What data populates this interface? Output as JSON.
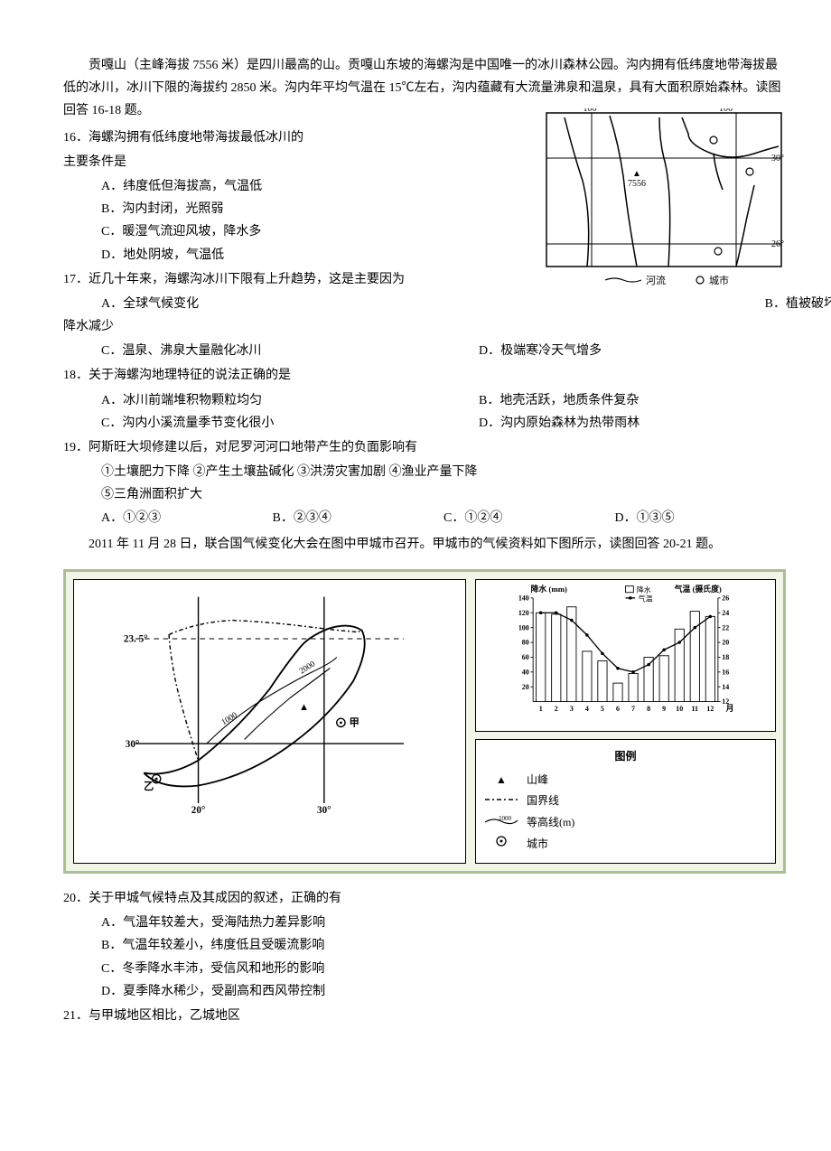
{
  "intro": "贡嘎山（主峰海拔 7556 米）是四川最高的山。贡嘎山东坡的海螺沟是中国唯一的冰川森林公园。沟内拥有低纬度地带海拔最低的冰川，冰川下限的海拔约 2850 米。沟内年平均气温在 15℃左右，沟内蕴藏有大流量沸泉和温泉，具有大面积原始森林。读图回答 16-18 题。",
  "q16": {
    "stem1": "16．海螺沟拥有低纬度地带海拔最低冰川的",
    "stem2": "主要条件是",
    "optA": "A．纬度低但海拔高，气温低",
    "optB": "B．沟内封闭，光照弱",
    "optC": "C．暖湿气流迎风坡，降水多",
    "optD": "D．地处阴坡，气温低"
  },
  "q17": {
    "stem": "17．近几十年来，海螺沟冰川下限有上升趋势，这是主要因为",
    "optA": "A．全球气候变化",
    "optB": "B．植被破坏，",
    "optB2": "降水减少",
    "optC": "C．温泉、沸泉大量融化冰川",
    "optD": "D．极端寒冷天气增多"
  },
  "q18": {
    "stem": "18．关于海螺沟地理特征的说法正确的是",
    "optA": "A．冰川前端堆积物颗粒均匀",
    "optB": "B．地壳活跃，地质条件复杂",
    "optC": "C．沟内小溪流量季节变化很小",
    "optD": "D．沟内原始森林为热带雨林"
  },
  "q19": {
    "stem": "19．阿斯旺大坝修建以后，对尼罗河河口地带产生的负面影响有",
    "items": "①土壤肥力下降    ②产生土壤盐碱化    ③洪涝灾害加剧    ④渔业产量下降",
    "items2": "⑤三角洲面积扩大",
    "optA": "A．①②③",
    "optB": "B．②③④",
    "optC": "C．①②④",
    "optD": "D．①③⑤"
  },
  "intro2": "2011 年 11 月 28 日，联合国气候变化大会在图中甲城市召开。甲城市的气候资料如下图所示，读图回答 20-21 题。",
  "q20": {
    "stem": "20．关于甲城气候特点及其成因的叙述，正确的有",
    "optA": "A．气温年较差大，受海陆热力差异影响",
    "optB": "B．气温年较差小，纬度低且受暖流影响",
    "optC": "C．冬季降水丰沛，受信风和地形的影响",
    "optD": "D．夏季降水稀少，受副高和西风带控制"
  },
  "q21": {
    "stem": "21．与甲城地区相比，乙城地区"
  },
  "map1": {
    "labels": {
      "lon100": "100°",
      "lon106": "106°",
      "lat30": "30°",
      "lat26": "26°",
      "peak": "7556",
      "river_legend": "河流",
      "city_legend": "城市"
    }
  },
  "bigmap": {
    "labels": {
      "lat235": "23. 5°",
      "lat30": "30°",
      "lon20": "20°",
      "lon30": "30°",
      "contour1000": "1000",
      "contour2000": "2000",
      "jia": "甲",
      "yi": "乙"
    },
    "legend": {
      "title": "图例",
      "peak": "山峰",
      "border": "国界线",
      "contour": "等高线(m)",
      "contour_val": "1000",
      "city": "城市"
    }
  },
  "chart": {
    "precip_label": "降水 (mm)",
    "temp_label": "气温 (摄氏度)",
    "legend_precip": "降水",
    "legend_temp": "气温",
    "y_precip": [
      20,
      40,
      60,
      80,
      100,
      120,
      140
    ],
    "y_temp": [
      12,
      14,
      16,
      18,
      20,
      22,
      24,
      26
    ],
    "months": [
      "1",
      "2",
      "3",
      "4",
      "5",
      "6",
      "7",
      "8",
      "9",
      "10",
      "11",
      "12"
    ],
    "month_suffix": "月",
    "precip_values": [
      120,
      118,
      128,
      68,
      55,
      25,
      38,
      60,
      62,
      98,
      122,
      115
    ],
    "temp_values": [
      24,
      24,
      23,
      21,
      18.5,
      16.5,
      16,
      17,
      19,
      20,
      22,
      23.5
    ],
    "bar_color": "#ffffff",
    "bar_border": "#000000",
    "line_color": "#000000",
    "background": "#ffffff"
  }
}
